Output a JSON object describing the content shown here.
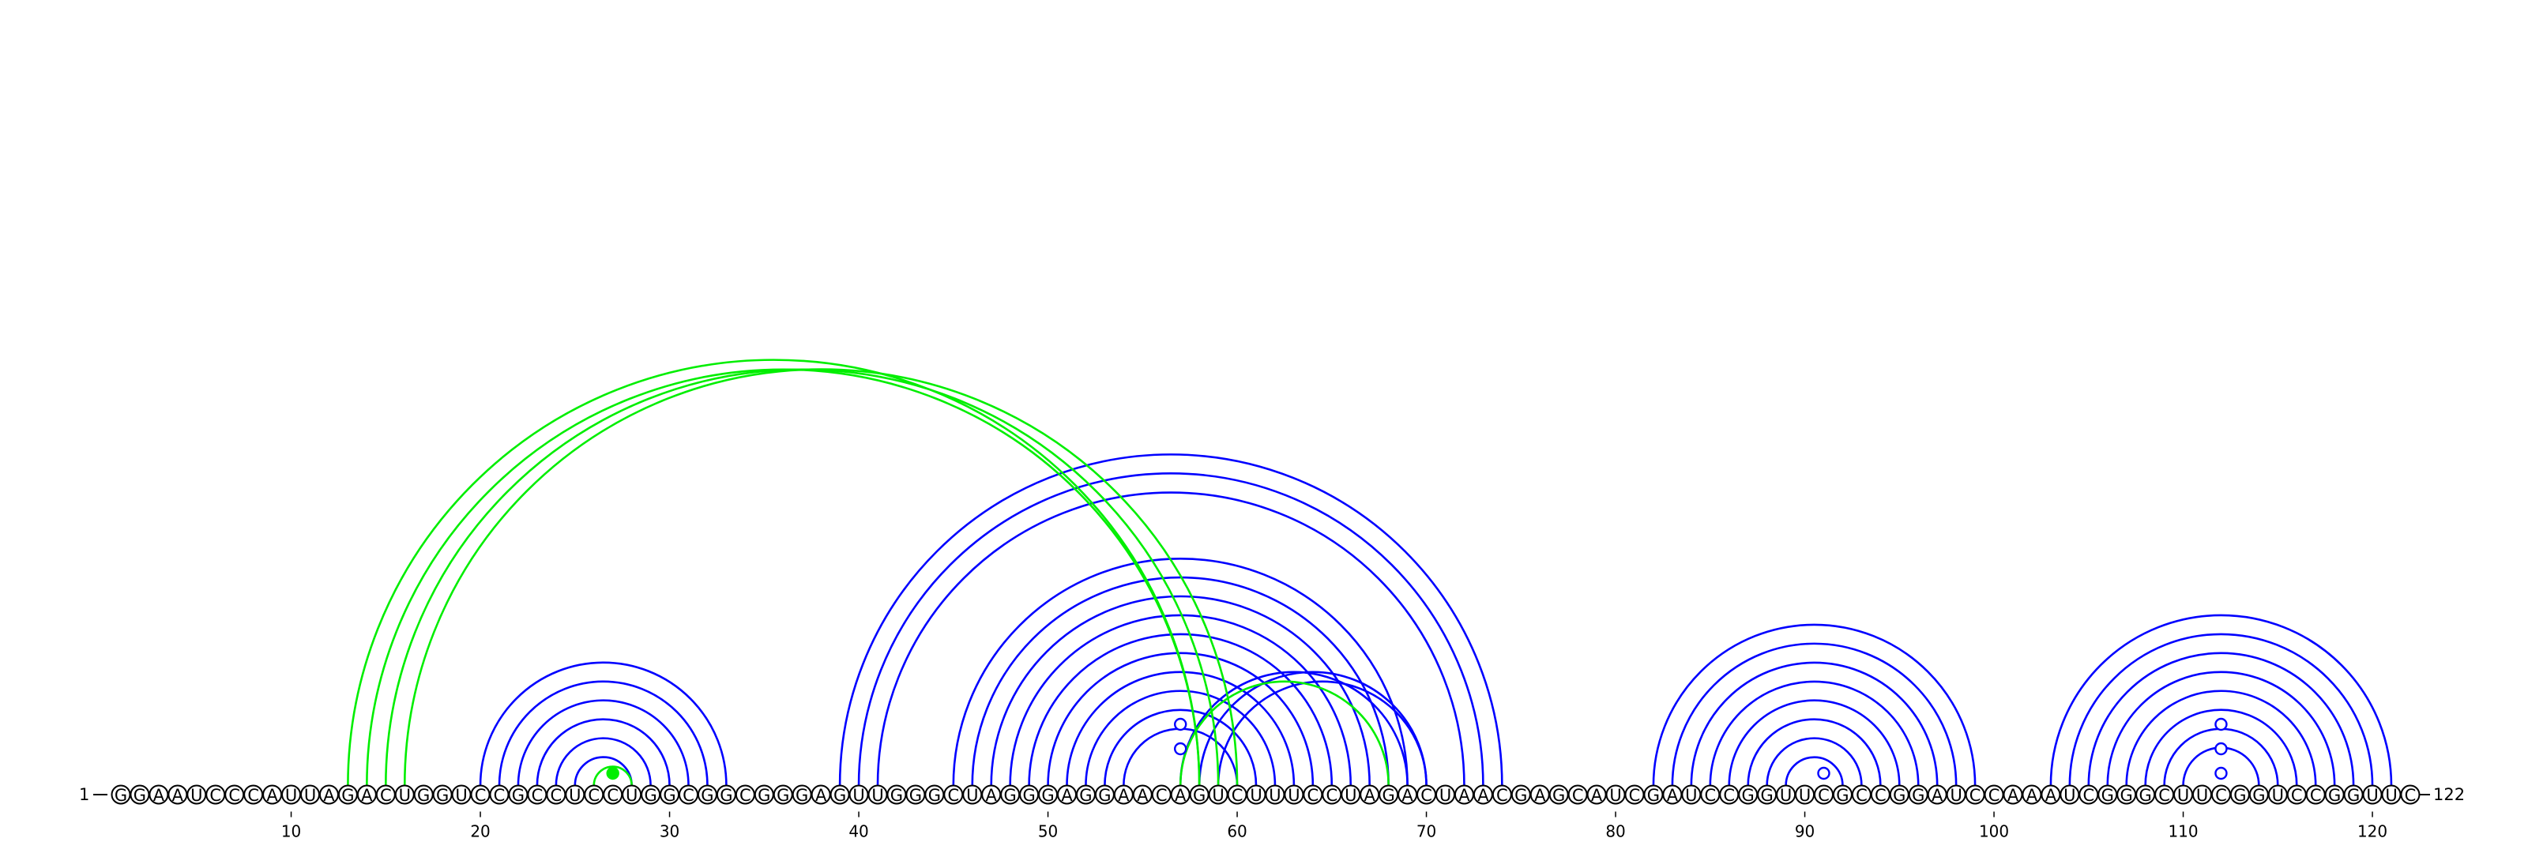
{
  "sequence": "GGAAUCCCAUUAGACUGGUCCGCCUCCUGGCGGCGGGAGUUGGGCUAGGGAGGAACAGUCUUUCCUAGACUAACGAGCAUCGAUCCGGUUCGCCGGAUCCAAAUCGGGCUUCGGUCCGGUUC",
  "start_label": "1",
  "end_label": "122",
  "ticks": [
    10,
    20,
    30,
    40,
    50,
    60,
    70,
    80,
    90,
    100,
    110,
    120
  ],
  "colors": {
    "primary_pairs": "#0000ff",
    "alternate_pairs": "#00ee00",
    "nucleotide_outline": "#000000",
    "background": "#ffffff"
  },
  "pairs": [
    {
      "i": 20,
      "j": 33,
      "color": "#0000ff"
    },
    {
      "i": 21,
      "j": 32,
      "color": "#0000ff"
    },
    {
      "i": 22,
      "j": 31,
      "color": "#0000ff"
    },
    {
      "i": 23,
      "j": 30,
      "color": "#0000ff"
    },
    {
      "i": 24,
      "j": 29,
      "color": "#0000ff"
    },
    {
      "i": 25,
      "j": 28,
      "color": "#0000ff"
    },
    {
      "i": 39,
      "j": 74,
      "color": "#0000ff"
    },
    {
      "i": 40,
      "j": 73,
      "color": "#0000ff"
    },
    {
      "i": 41,
      "j": 72,
      "color": "#0000ff"
    },
    {
      "i": 45,
      "j": 69,
      "color": "#0000ff"
    },
    {
      "i": 46,
      "j": 68,
      "color": "#0000ff"
    },
    {
      "i": 47,
      "j": 67,
      "color": "#0000ff"
    },
    {
      "i": 48,
      "j": 66,
      "color": "#0000ff"
    },
    {
      "i": 49,
      "j": 65,
      "color": "#0000ff"
    },
    {
      "i": 50,
      "j": 64,
      "color": "#0000ff"
    },
    {
      "i": 51,
      "j": 63,
      "color": "#0000ff"
    },
    {
      "i": 52,
      "j": 62,
      "color": "#0000ff"
    },
    {
      "i": 53,
      "j": 61,
      "color": "#0000ff"
    },
    {
      "i": 54,
      "j": 60,
      "color": "#0000ff"
    },
    {
      "i": 57,
      "j": 69,
      "color": "#0000ff"
    },
    {
      "i": 58,
      "j": 70,
      "color": "#0000ff"
    },
    {
      "i": 59,
      "j": 70,
      "color": "#0000ff"
    },
    {
      "i": 82,
      "j": 99,
      "color": "#0000ff"
    },
    {
      "i": 83,
      "j": 98,
      "color": "#0000ff"
    },
    {
      "i": 84,
      "j": 97,
      "color": "#0000ff"
    },
    {
      "i": 85,
      "j": 96,
      "color": "#0000ff"
    },
    {
      "i": 86,
      "j": 95,
      "color": "#0000ff"
    },
    {
      "i": 87,
      "j": 94,
      "color": "#0000ff"
    },
    {
      "i": 88,
      "j": 93,
      "color": "#0000ff"
    },
    {
      "i": 89,
      "j": 92,
      "color": "#0000ff"
    },
    {
      "i": 103,
      "j": 121,
      "color": "#0000ff"
    },
    {
      "i": 104,
      "j": 120,
      "color": "#0000ff"
    },
    {
      "i": 105,
      "j": 119,
      "color": "#0000ff"
    },
    {
      "i": 106,
      "j": 118,
      "color": "#0000ff"
    },
    {
      "i": 107,
      "j": 117,
      "color": "#0000ff"
    },
    {
      "i": 108,
      "j": 116,
      "color": "#0000ff"
    },
    {
      "i": 109,
      "j": 115,
      "color": "#0000ff"
    },
    {
      "i": 110,
      "j": 114,
      "color": "#0000ff"
    },
    {
      "i": 13,
      "j": 58,
      "color": "#00ee00"
    },
    {
      "i": 14,
      "j": 58,
      "color": "#00ee00"
    },
    {
      "i": 15,
      "j": 59,
      "color": "#00ee00"
    },
    {
      "i": 16,
      "j": 60,
      "color": "#00ee00"
    },
    {
      "i": 26,
      "j": 28,
      "color": "#00ee00"
    },
    {
      "i": 57,
      "j": 68,
      "color": "#00ee00"
    }
  ],
  "dots": [
    {
      "pos": 27,
      "level": 1,
      "color": "#00ee00",
      "filled": true
    },
    {
      "pos": 57,
      "level": 3,
      "color": "#0000ff",
      "filled": false
    },
    {
      "pos": 57,
      "level": 5,
      "color": "#0000ff",
      "filled": false
    },
    {
      "pos": 91,
      "level": 1,
      "color": "#0000ff",
      "filled": false
    },
    {
      "pos": 112,
      "level": 1,
      "color": "#0000ff",
      "filled": false
    },
    {
      "pos": 112,
      "level": 3,
      "color": "#0000ff",
      "filled": false
    },
    {
      "pos": 112,
      "level": 5,
      "color": "#0000ff",
      "filled": false
    }
  ]
}
